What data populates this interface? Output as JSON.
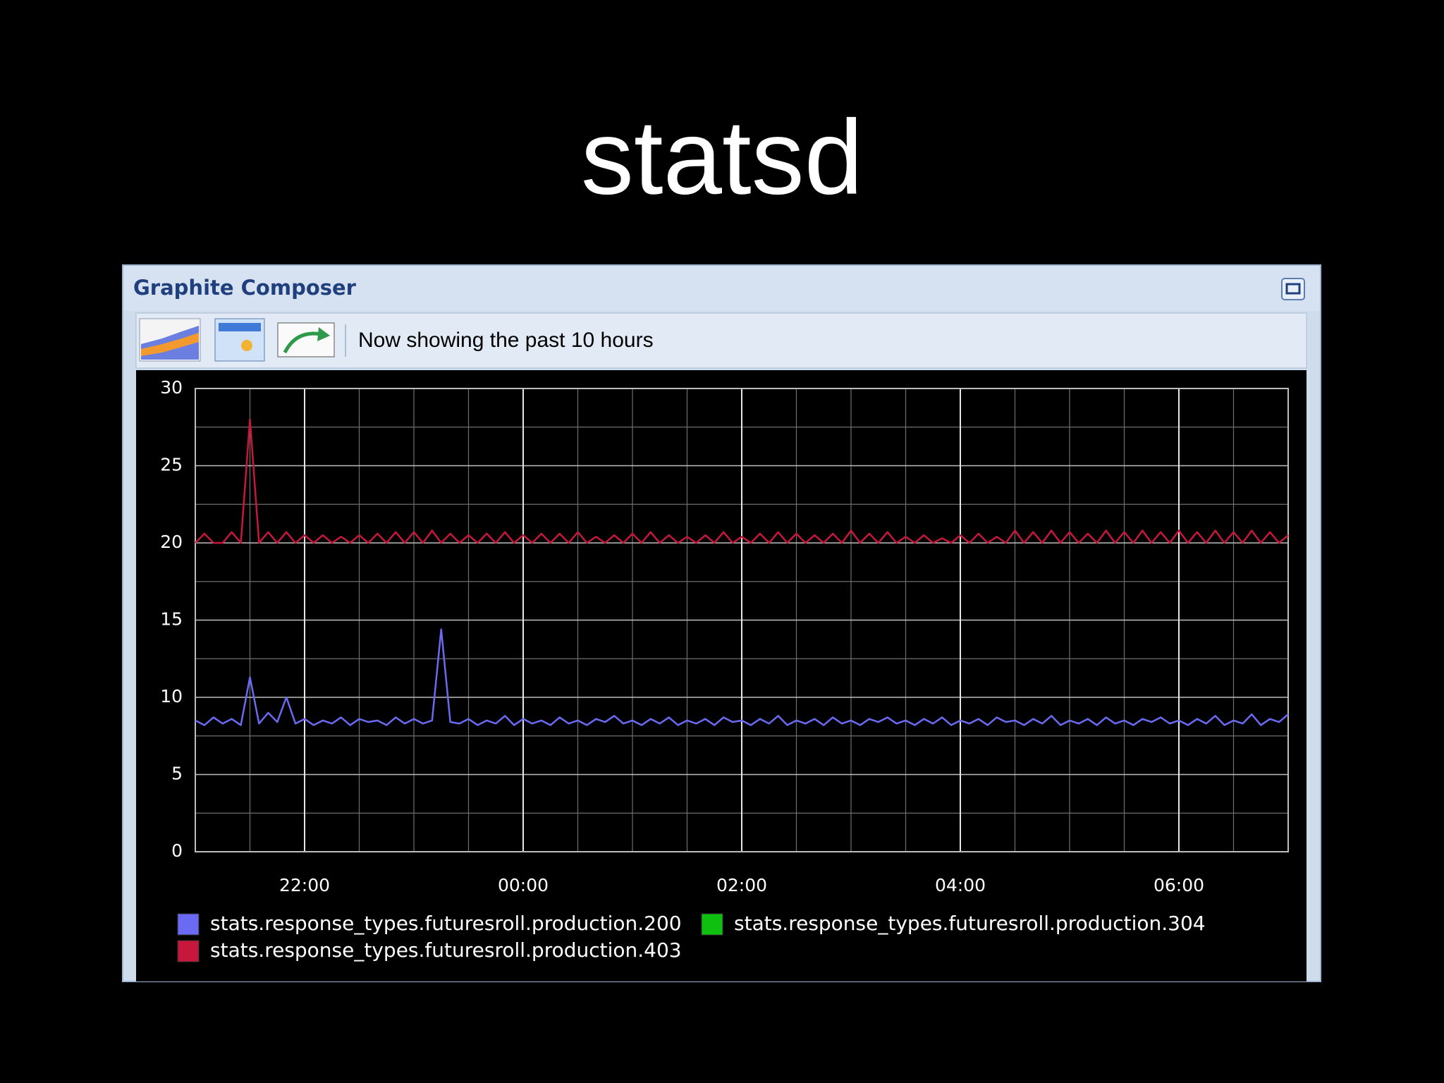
{
  "slide_title": "statsd",
  "window": {
    "title": "Graphite Composer",
    "status": "Now showing the past 10 hours"
  },
  "chart_data": {
    "type": "line",
    "x": [
      1260,
      1265,
      1270,
      1275,
      1280,
      1285,
      1290,
      1295,
      1300,
      1305,
      1310,
      1315,
      1320,
      1325,
      1330,
      1335,
      1340,
      1345,
      1350,
      1355,
      1360,
      1365,
      1370,
      1375,
      1380,
      1385,
      1390,
      1395,
      1400,
      1405,
      1410,
      1415,
      1420,
      1425,
      1430,
      1435,
      1440,
      1445,
      1450,
      1455,
      1460,
      1465,
      1470,
      1475,
      1480,
      1485,
      1490,
      1495,
      1500,
      1505,
      1510,
      1515,
      1520,
      1525,
      1530,
      1535,
      1540,
      1545,
      1550,
      1555,
      1560,
      1565,
      1570,
      1575,
      1580,
      1585,
      1590,
      1595,
      1600,
      1605,
      1610,
      1615,
      1620,
      1625,
      1630,
      1635,
      1640,
      1645,
      1650,
      1655,
      1660,
      1665,
      1670,
      1675,
      1680,
      1685,
      1690,
      1695,
      1700,
      1705,
      1710,
      1715,
      1720,
      1725,
      1730,
      1735,
      1740,
      1745,
      1750,
      1755,
      1760,
      1765,
      1770,
      1775,
      1780,
      1785,
      1790,
      1795,
      1800,
      1805,
      1810,
      1815,
      1820,
      1825,
      1830,
      1835,
      1840,
      1845,
      1850,
      1855,
      1860
    ],
    "xlim": [
      1260,
      1860
    ],
    "xticks": [
      {
        "value": 1320,
        "label": "22:00"
      },
      {
        "value": 1440,
        "label": "00:00"
      },
      {
        "value": 1560,
        "label": "02:00"
      },
      {
        "value": 1680,
        "label": "04:00"
      },
      {
        "value": 1800,
        "label": "06:00"
      }
    ],
    "ylim": [
      0,
      30
    ],
    "yticks": [
      0,
      5,
      10,
      15,
      20,
      25,
      30
    ],
    "grid": true,
    "series": [
      {
        "name": "stats.response_types.futuresroll.production.200",
        "color": "#6a6af2",
        "values": [
          8.5,
          8.2,
          8.7,
          8.3,
          8.6,
          8.2,
          11.3,
          8.3,
          9.0,
          8.4,
          10.0,
          8.3,
          8.6,
          8.2,
          8.5,
          8.3,
          8.7,
          8.2,
          8.6,
          8.4,
          8.5,
          8.2,
          8.7,
          8.3,
          8.6,
          8.3,
          8.5,
          14.4,
          8.4,
          8.3,
          8.6,
          8.2,
          8.5,
          8.3,
          8.8,
          8.2,
          8.6,
          8.3,
          8.5,
          8.2,
          8.7,
          8.3,
          8.5,
          8.2,
          8.6,
          8.4,
          8.8,
          8.3,
          8.5,
          8.2,
          8.6,
          8.3,
          8.7,
          8.2,
          8.5,
          8.3,
          8.6,
          8.2,
          8.7,
          8.4,
          8.5,
          8.2,
          8.6,
          8.3,
          8.8,
          8.2,
          8.5,
          8.3,
          8.6,
          8.2,
          8.7,
          8.3,
          8.5,
          8.2,
          8.6,
          8.4,
          8.7,
          8.3,
          8.5,
          8.2,
          8.6,
          8.3,
          8.7,
          8.2,
          8.5,
          8.3,
          8.6,
          8.2,
          8.7,
          8.4,
          8.5,
          8.2,
          8.6,
          8.3,
          8.8,
          8.2,
          8.5,
          8.3,
          8.6,
          8.2,
          8.7,
          8.3,
          8.5,
          8.2,
          8.6,
          8.4,
          8.7,
          8.3,
          8.5,
          8.2,
          8.6,
          8.3,
          8.8,
          8.2,
          8.5,
          8.3,
          8.9,
          8.2,
          8.6,
          8.4,
          8.9
        ]
      },
      {
        "name": "stats.response_types.futuresroll.production.304",
        "color": "#10c010",
        "values": [
          null,
          null,
          null,
          null,
          null,
          null,
          null,
          null,
          null,
          null,
          null,
          null,
          null,
          null,
          null,
          null,
          null,
          null,
          null,
          null,
          null,
          null,
          null,
          null,
          null,
          null,
          null,
          null,
          null,
          null,
          null,
          null,
          null,
          null,
          null,
          null,
          null,
          null,
          null,
          null,
          null,
          null,
          null,
          null,
          null,
          null,
          null,
          null,
          null,
          null,
          null,
          null,
          null,
          null,
          null,
          null,
          null,
          null,
          null,
          null,
          null,
          null,
          null,
          null,
          null,
          null,
          null,
          null,
          null,
          null,
          null,
          null,
          null,
          null,
          null,
          null,
          null,
          null,
          null,
          null,
          null,
          null,
          null,
          null,
          null,
          null,
          null,
          null,
          null,
          null,
          null,
          null,
          null,
          null,
          null,
          null,
          null,
          null,
          null,
          null,
          null,
          null,
          null,
          null,
          null,
          null,
          null,
          null,
          null,
          null,
          null,
          null,
          null,
          null,
          null,
          null,
          null,
          null,
          null,
          null,
          null
        ]
      },
      {
        "name": "stats.response_types.futuresroll.production.403",
        "color": "#c8173c",
        "values": [
          20,
          20.6,
          20,
          20,
          20.7,
          20,
          28,
          20,
          20.7,
          20,
          20.7,
          20,
          20.5,
          20,
          20.5,
          20,
          20.4,
          20,
          20.5,
          20,
          20.6,
          20,
          20.7,
          20,
          20.7,
          20,
          20.8,
          20,
          20.6,
          20,
          20.5,
          20,
          20.6,
          20,
          20.7,
          20,
          20.5,
          20,
          20.6,
          20,
          20.6,
          20,
          20.7,
          20,
          20.4,
          20,
          20.5,
          20,
          20.6,
          20,
          20.7,
          20,
          20.5,
          20,
          20.4,
          20,
          20.5,
          20,
          20.7,
          20,
          20.4,
          20,
          20.6,
          20,
          20.7,
          20,
          20.6,
          20,
          20.5,
          20,
          20.6,
          20,
          20.8,
          20,
          20.6,
          20,
          20.7,
          20,
          20.4,
          20,
          20.5,
          20,
          20.3,
          20,
          20.5,
          20,
          20.6,
          20,
          20.4,
          20,
          20.8,
          20,
          20.7,
          20,
          20.8,
          20,
          20.7,
          20,
          20.6,
          20,
          20.8,
          20,
          20.7,
          20,
          20.8,
          20,
          20.7,
          20,
          20.8,
          20,
          20.7,
          20,
          20.8,
          20,
          20.7,
          20,
          20.8,
          20,
          20.7,
          20,
          20.5
        ]
      }
    ]
  }
}
